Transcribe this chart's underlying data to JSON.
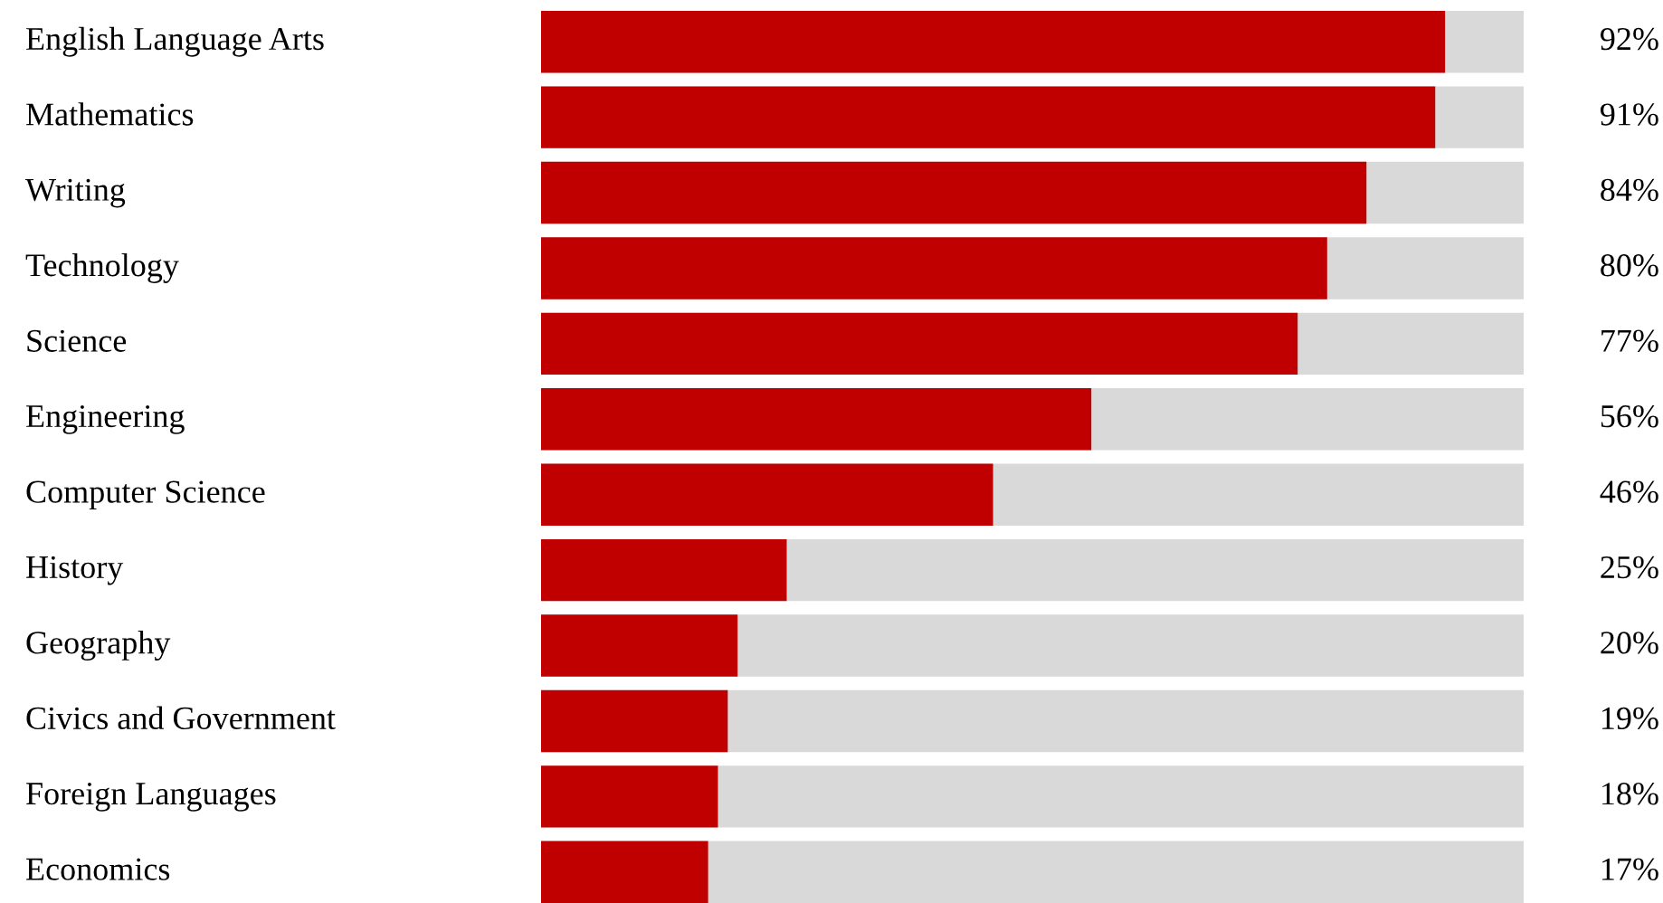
{
  "chart_data": {
    "type": "bar",
    "orientation": "horizontal",
    "categories": [
      "English Language Arts",
      "Mathematics",
      "Writing",
      "Technology",
      "Science",
      "Engineering",
      "Computer Science",
      "History",
      "Geography",
      "Civics and Government",
      "Foreign Languages",
      "Economics"
    ],
    "values": [
      92,
      91,
      84,
      80,
      77,
      56,
      46,
      25,
      20,
      19,
      18,
      17
    ],
    "color": "#c00000",
    "value_labels": [
      "92%",
      "91%",
      "84%",
      "80%",
      "77%",
      "56%",
      "46%",
      "25%",
      "20%",
      "19%",
      "18%",
      "17%"
    ],
    "xlim": [
      0,
      100
    ],
    "tick_labels": "y"
  }
}
